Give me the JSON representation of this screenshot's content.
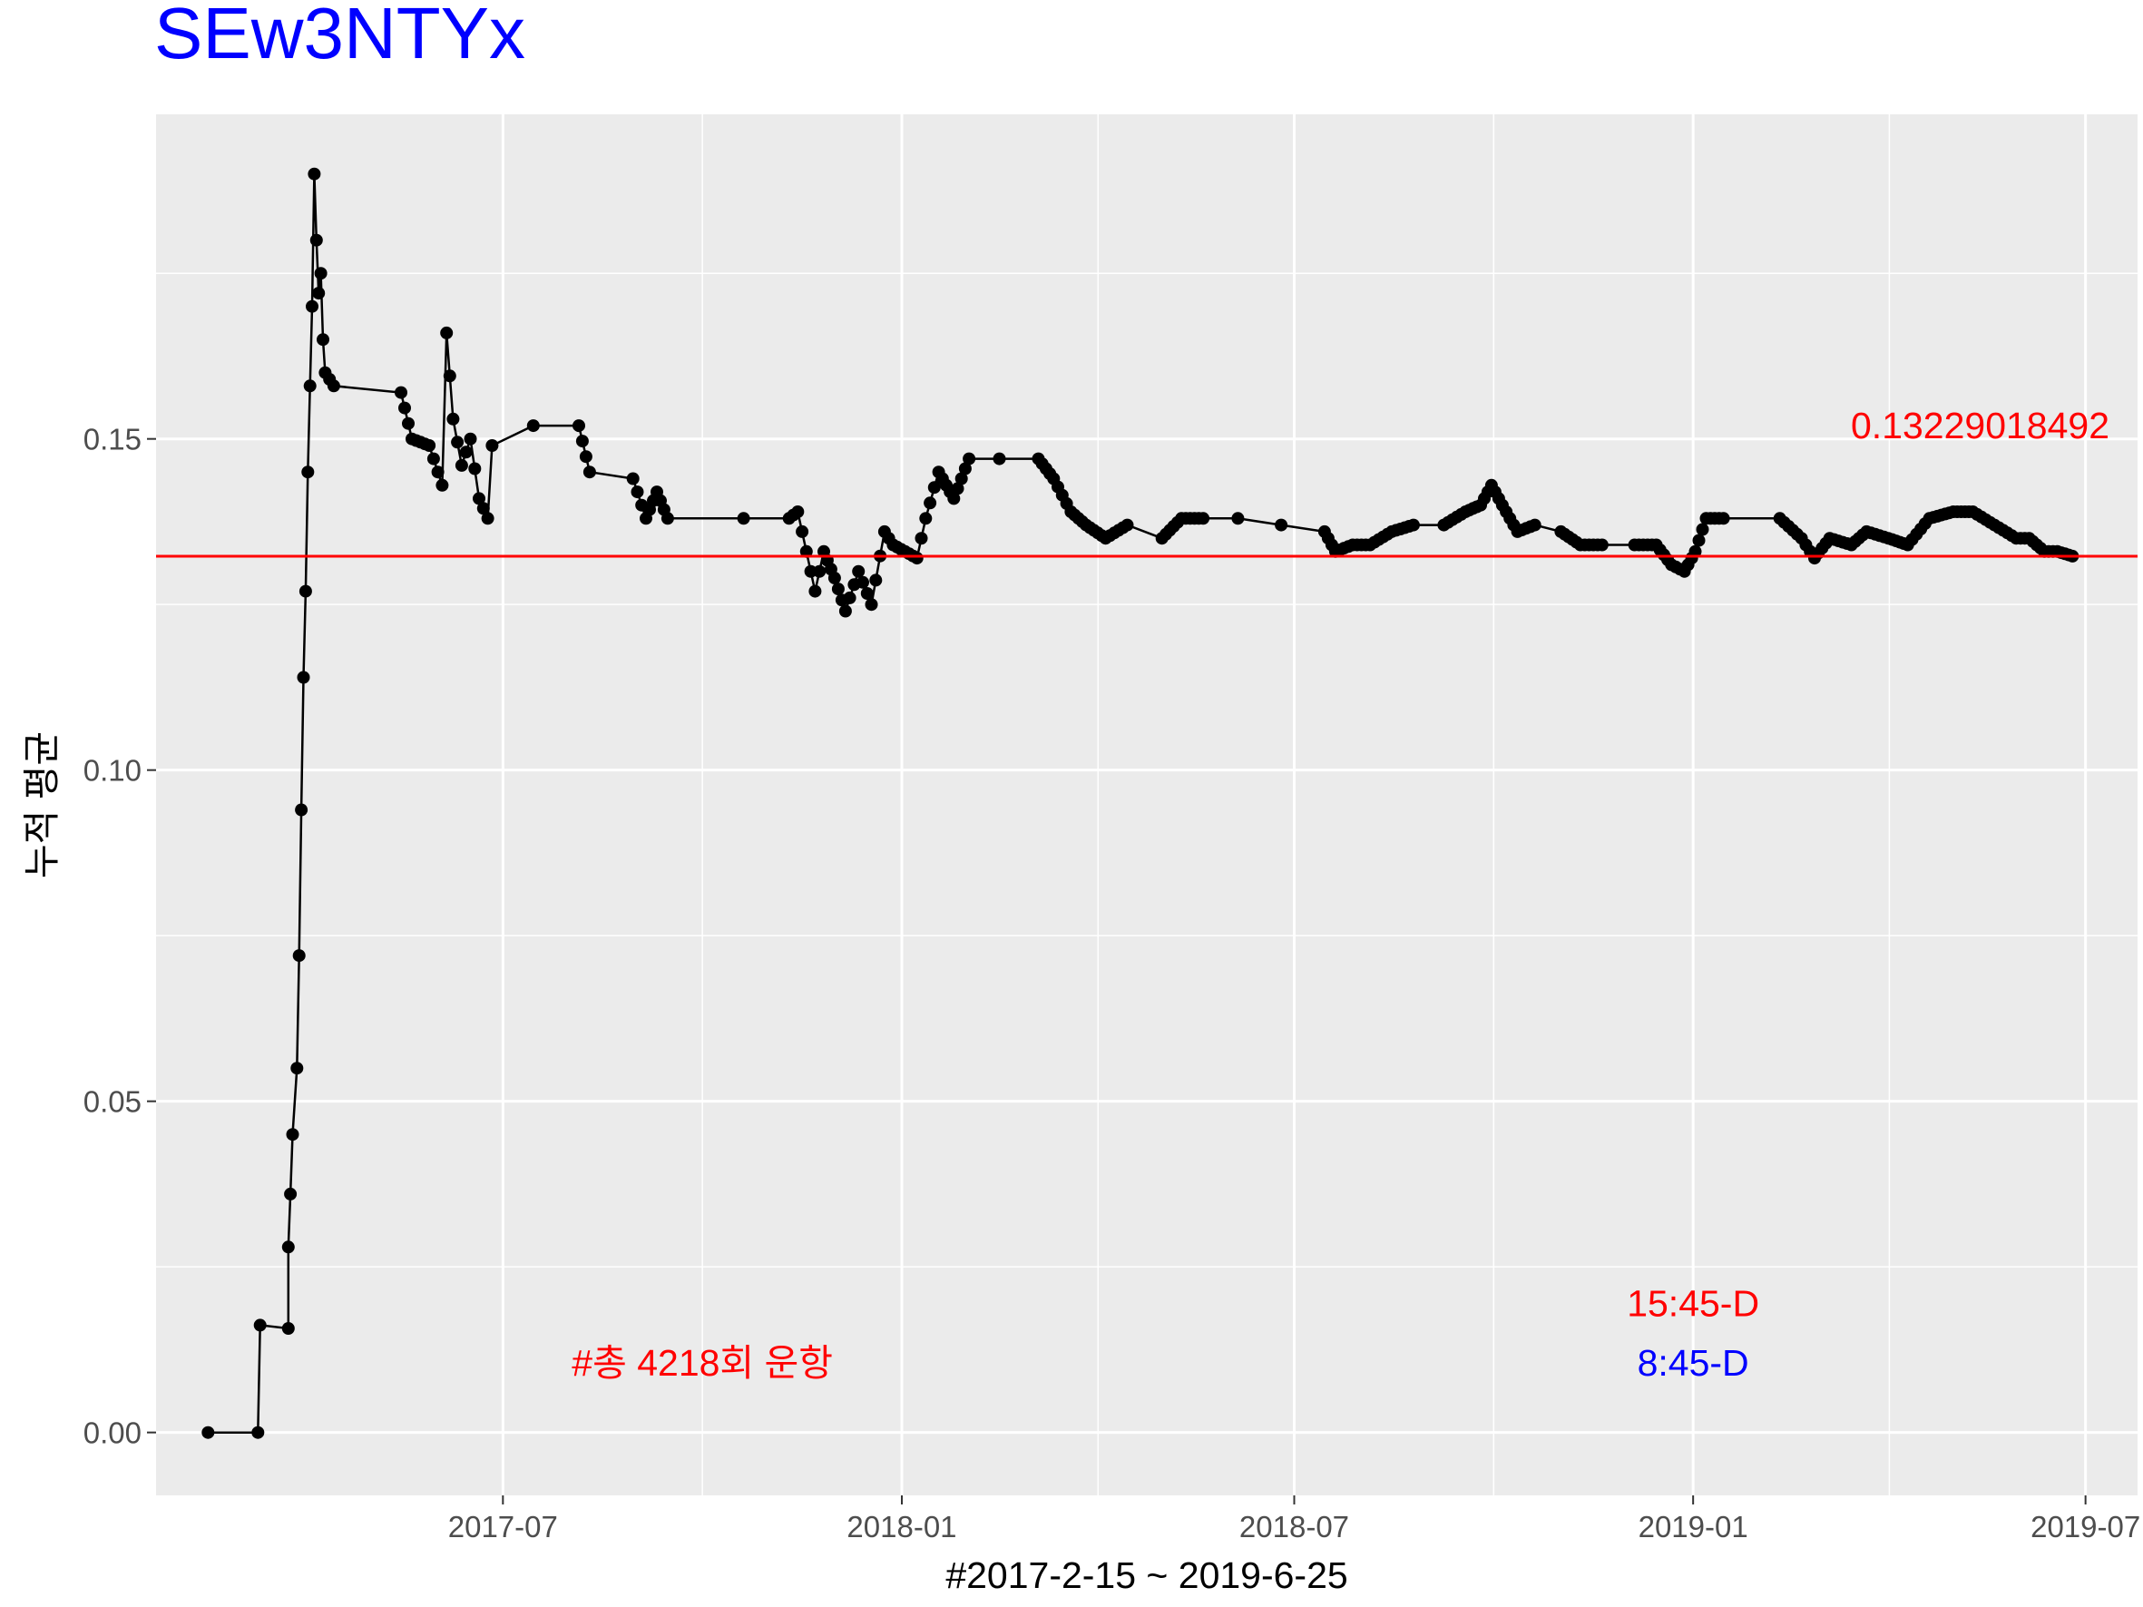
{
  "chart_data": {
    "type": "line",
    "title": "SEw3NTYx",
    "title_color": "#0000FF",
    "xlabel": "#2017-2-15 ~ 2019-6-25",
    "ylabel": "누적 평균",
    "x_range": [
      "2017-01-22",
      "2019-07-25"
    ],
    "y_range": [
      -0.0095,
      0.199
    ],
    "grid": true,
    "panel_background": "#EBEBEB",
    "x_ticks": [
      "2017-07",
      "2018-01",
      "2018-07",
      "2019-01",
      "2019-07"
    ],
    "y_ticks": [
      "0.00",
      "0.05",
      "0.10",
      "0.15"
    ],
    "reference_line": {
      "value": 0.13229018492,
      "color": "#FF0000"
    },
    "series": [
      {
        "color": "#000000",
        "points": [
          [
            "2017-02-15",
            0.0
          ],
          [
            "2017-03-10",
            0.0
          ],
          [
            "2017-03-11",
            0.0162
          ],
          [
            "2017-03-24",
            0.0157
          ],
          [
            "2017-03-24",
            0.028
          ],
          [
            "2017-03-25",
            0.036
          ],
          [
            "2017-03-26",
            0.045
          ],
          [
            "2017-03-28",
            0.055
          ],
          [
            "2017-03-29",
            0.072
          ],
          [
            "2017-03-30",
            0.094
          ],
          [
            "2017-03-31",
            0.114
          ],
          [
            "2017-04-01",
            0.127
          ],
          [
            "2017-04-02",
            0.145
          ],
          [
            "2017-04-03",
            0.158
          ],
          [
            "2017-04-04",
            0.17
          ],
          [
            "2017-04-05",
            0.19
          ],
          [
            "2017-04-06",
            0.18
          ],
          [
            "2017-04-07",
            0.172
          ],
          [
            "2017-04-08",
            0.175
          ],
          [
            "2017-04-09",
            0.165
          ],
          [
            "2017-04-10",
            0.16
          ],
          [
            "2017-04-14",
            0.158
          ],
          [
            "2017-05-15",
            0.157
          ],
          [
            "2017-05-20",
            0.15
          ],
          [
            "2017-05-28",
            0.149
          ],
          [
            "2017-06-03",
            0.143
          ],
          [
            "2017-06-05",
            0.166
          ],
          [
            "2017-06-08",
            0.153
          ],
          [
            "2017-06-12",
            0.146
          ],
          [
            "2017-06-16",
            0.15
          ],
          [
            "2017-06-20",
            0.141
          ],
          [
            "2017-06-24",
            0.138
          ],
          [
            "2017-06-26",
            0.149
          ],
          [
            "2017-07-15",
            0.152
          ],
          [
            "2017-08-05",
            0.152
          ],
          [
            "2017-08-10",
            0.145
          ],
          [
            "2017-08-30",
            0.144
          ],
          [
            "2017-09-05",
            0.138
          ],
          [
            "2017-09-10",
            0.142
          ],
          [
            "2017-09-15",
            0.138
          ],
          [
            "2017-10-20",
            0.138
          ],
          [
            "2017-11-10",
            0.138
          ],
          [
            "2017-11-14",
            0.139
          ],
          [
            "2017-11-18",
            0.133
          ],
          [
            "2017-11-22",
            0.127
          ],
          [
            "2017-11-26",
            0.133
          ],
          [
            "2017-12-01",
            0.129
          ],
          [
            "2017-12-06",
            0.124
          ],
          [
            "2017-12-12",
            0.13
          ],
          [
            "2017-12-18",
            0.125
          ],
          [
            "2017-12-24",
            0.136
          ],
          [
            "2017-12-28",
            0.134
          ],
          [
            "2018-01-08",
            0.132
          ],
          [
            "2018-01-12",
            0.138
          ],
          [
            "2018-01-18",
            0.145
          ],
          [
            "2018-01-25",
            0.141
          ],
          [
            "2018-02-01",
            0.147
          ],
          [
            "2018-02-15",
            0.147
          ],
          [
            "2018-03-05",
            0.147
          ],
          [
            "2018-03-12",
            0.144
          ],
          [
            "2018-03-20",
            0.139
          ],
          [
            "2018-03-27",
            0.137
          ],
          [
            "2018-04-05",
            0.135
          ],
          [
            "2018-04-15",
            0.137
          ],
          [
            "2018-05-01",
            0.135
          ],
          [
            "2018-05-10",
            0.138
          ],
          [
            "2018-05-20",
            0.138
          ],
          [
            "2018-06-05",
            0.138
          ],
          [
            "2018-06-25",
            0.137
          ],
          [
            "2018-07-15",
            0.136
          ],
          [
            "2018-07-20",
            0.133
          ],
          [
            "2018-07-28",
            0.134
          ],
          [
            "2018-08-05",
            0.134
          ],
          [
            "2018-08-15",
            0.136
          ],
          [
            "2018-08-25",
            0.137
          ],
          [
            "2018-09-08",
            0.137
          ],
          [
            "2018-09-18",
            0.139
          ],
          [
            "2018-09-25",
            0.14
          ],
          [
            "2018-09-30",
            0.143
          ],
          [
            "2018-10-05",
            0.14
          ],
          [
            "2018-10-12",
            0.136
          ],
          [
            "2018-10-20",
            0.137
          ],
          [
            "2018-11-01",
            0.136
          ],
          [
            "2018-11-10",
            0.134
          ],
          [
            "2018-11-20",
            0.134
          ],
          [
            "2018-12-05",
            0.134
          ],
          [
            "2018-12-15",
            0.134
          ],
          [
            "2018-12-22",
            0.131
          ],
          [
            "2018-12-28",
            0.13
          ],
          [
            "2019-01-02",
            0.133
          ],
          [
            "2019-01-07",
            0.138
          ],
          [
            "2019-01-15",
            0.138
          ],
          [
            "2019-02-10",
            0.138
          ],
          [
            "2019-02-20",
            0.135
          ],
          [
            "2019-02-26",
            0.132
          ],
          [
            "2019-03-05",
            0.135
          ],
          [
            "2019-03-15",
            0.134
          ],
          [
            "2019-03-22",
            0.136
          ],
          [
            "2019-04-01",
            0.135
          ],
          [
            "2019-04-10",
            0.134
          ],
          [
            "2019-04-20",
            0.138
          ],
          [
            "2019-05-01",
            0.139
          ],
          [
            "2019-05-10",
            0.139
          ],
          [
            "2019-05-20",
            0.137
          ],
          [
            "2019-05-30",
            0.135
          ],
          [
            "2019-06-05",
            0.135
          ],
          [
            "2019-06-12",
            0.133
          ],
          [
            "2019-06-18",
            0.133
          ],
          [
            "2019-06-25",
            0.1323
          ]
        ]
      }
    ],
    "annotations": [
      {
        "text": "0.13229018492",
        "color": "#FF0000",
        "x": "2019-07-12",
        "y": 0.152
      },
      {
        "text": "#총 4218회 운항",
        "color": "#FF0000",
        "x": "2017-10-01",
        "y": 0.0105
      },
      {
        "text": "15:45-D",
        "color": "#FF0000",
        "x": "2019-01-01",
        "y": 0.0195
      },
      {
        "text": "8:45-D",
        "color": "#0000FF",
        "x": "2019-01-01",
        "y": 0.0105
      }
    ]
  }
}
